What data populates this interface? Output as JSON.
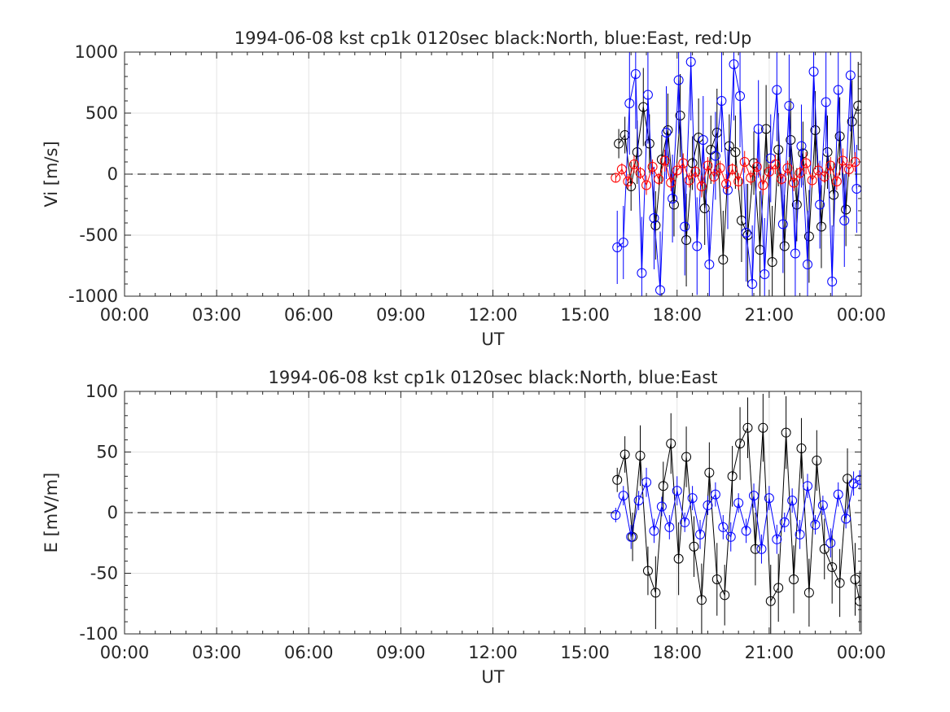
{
  "chart_data": [
    {
      "type": "line",
      "title": "1994-06-08 kst cp1k 0120sec black:North, blue:East, red:Up",
      "xlabel": "UT",
      "ylabel": "Vi [m/s]",
      "xlim_hours": [
        0,
        24
      ],
      "ylim": [
        -1000,
        1000
      ],
      "xticks": [
        "00:00",
        "03:00",
        "06:00",
        "09:00",
        "12:00",
        "15:00",
        "18:00",
        "21:00",
        "00:00"
      ],
      "yticks": [
        "1000",
        "500",
        "0",
        "-500",
        "-1000"
      ],
      "ytick_values": [
        1000,
        500,
        0,
        -500,
        -1000
      ],
      "grid": true,
      "zero_line": true,
      "colors": {
        "north": "#000000",
        "east": "#0000ff",
        "up": "#ff0000"
      },
      "series": [
        {
          "color": "#000000",
          "x": [
            16.1,
            16.3,
            16.5,
            16.7,
            16.9,
            17.1,
            17.3,
            17.5,
            17.7,
            17.9,
            18.1,
            18.3,
            18.5,
            18.7,
            18.9,
            19.1,
            19.3,
            19.5,
            19.7,
            19.9,
            20.1,
            20.3,
            20.5,
            20.7,
            20.9,
            21.1,
            21.3,
            21.5,
            21.7,
            21.9,
            22.1,
            22.3,
            22.5,
            22.7,
            22.9,
            23.1,
            23.3,
            23.5,
            23.7,
            23.9
          ],
          "y": [
            250,
            320,
            -100,
            180,
            550,
            250,
            -420,
            120,
            360,
            -250,
            480,
            -540,
            90,
            300,
            -280,
            200,
            340,
            -700,
            230,
            180,
            -380,
            -500,
            90,
            -620,
            370,
            -720,
            200,
            -590,
            280,
            -250,
            170,
            -510,
            360,
            -430,
            180,
            -170,
            310,
            -290,
            430,
            560
          ],
          "err": [
            120,
            150,
            200,
            260,
            320,
            240,
            280,
            200,
            300,
            260,
            340,
            380,
            220,
            320,
            300,
            280,
            360,
            400,
            260,
            300,
            340,
            420,
            260,
            480,
            360,
            460,
            300,
            420,
            340,
            300,
            260,
            380,
            320,
            340,
            300,
            260,
            320,
            300,
            340,
            360
          ]
        },
        {
          "color": "#0000ff",
          "x": [
            16.05,
            16.25,
            16.45,
            16.65,
            16.85,
            17.05,
            17.25,
            17.45,
            17.65,
            17.85,
            18.05,
            18.25,
            18.45,
            18.65,
            18.85,
            19.05,
            19.25,
            19.45,
            19.65,
            19.85,
            20.05,
            20.25,
            20.45,
            20.65,
            20.85,
            21.05,
            21.25,
            21.45,
            21.65,
            21.85,
            22.05,
            22.25,
            22.45,
            22.65,
            22.85,
            23.05,
            23.25,
            23.45,
            23.65,
            23.85
          ],
          "y": [
            -600,
            -560,
            580,
            820,
            -810,
            650,
            -360,
            -950,
            340,
            -200,
            770,
            -430,
            920,
            -590,
            280,
            -740,
            150,
            600,
            -130,
            900,
            640,
            -480,
            -900,
            370,
            -820,
            130,
            690,
            -410,
            560,
            -650,
            230,
            -740,
            840,
            -250,
            590,
            -880,
            690,
            -380,
            810,
            -120
          ],
          "err": [
            300,
            300,
            420,
            450,
            460,
            400,
            420,
            480,
            380,
            360,
            440,
            400,
            480,
            400,
            360,
            440,
            360,
            420,
            320,
            460,
            420,
            400,
            480,
            400,
            460,
            360,
            420,
            400,
            420,
            420,
            340,
            440,
            460,
            360,
            420,
            460,
            420,
            380,
            460,
            360
          ]
        },
        {
          "color": "#ff0000",
          "x": [
            16.0,
            16.2,
            16.4,
            16.6,
            16.8,
            17.0,
            17.2,
            17.4,
            17.6,
            17.8,
            18.0,
            18.2,
            18.4,
            18.6,
            18.8,
            19.0,
            19.2,
            19.4,
            19.6,
            19.8,
            20.0,
            20.2,
            20.4,
            20.6,
            20.8,
            21.0,
            21.2,
            21.4,
            21.6,
            21.8,
            22.0,
            22.2,
            22.4,
            22.6,
            22.8,
            23.0,
            23.2,
            23.4,
            23.6,
            23.8
          ],
          "y": [
            -30,
            40,
            -60,
            80,
            10,
            -90,
            60,
            -40,
            110,
            -70,
            30,
            90,
            -50,
            20,
            -100,
            70,
            -20,
            50,
            -80,
            40,
            -60,
            100,
            -30,
            60,
            -90,
            20,
            80,
            -40,
            50,
            -70,
            10,
            90,
            -50,
            30,
            -20,
            70,
            -60,
            110,
            40,
            100
          ],
          "err": [
            40,
            50,
            60,
            70,
            50,
            80,
            60,
            50,
            90,
            70,
            60,
            80,
            60,
            50,
            90,
            70,
            60,
            60,
            80,
            50,
            70,
            90,
            60,
            70,
            80,
            60,
            80,
            50,
            60,
            70,
            50,
            90,
            60,
            60,
            50,
            70,
            70,
            100,
            60,
            80
          ]
        }
      ]
    },
    {
      "type": "line",
      "title": "1994-06-08 kst cp1k 0120sec black:North, blue:East",
      "xlabel": "UT",
      "ylabel": "E [mV/m]",
      "xlim_hours": [
        0,
        24
      ],
      "ylim": [
        -100,
        100
      ],
      "xticks": [
        "00:00",
        "03:00",
        "06:00",
        "09:00",
        "12:00",
        "15:00",
        "18:00",
        "21:00",
        "00:00"
      ],
      "yticks": [
        "100",
        "50",
        "0",
        "-50",
        "-100"
      ],
      "ytick_values": [
        100,
        50,
        0,
        -50,
        -100
      ],
      "grid": true,
      "zero_line": true,
      "colors": {
        "north": "#000000",
        "east": "#0000ff"
      },
      "series": [
        {
          "color": "#000000",
          "x": [
            16.05,
            16.3,
            16.55,
            16.8,
            17.05,
            17.3,
            17.55,
            17.8,
            18.05,
            18.3,
            18.55,
            18.8,
            19.05,
            19.3,
            19.55,
            19.8,
            20.05,
            20.3,
            20.55,
            20.8,
            21.05,
            21.3,
            21.55,
            21.8,
            22.05,
            22.3,
            22.55,
            22.8,
            23.05,
            23.3,
            23.55,
            23.8,
            23.95
          ],
          "y": [
            27,
            48,
            -20,
            47,
            -48,
            -66,
            22,
            57,
            -38,
            46,
            -28,
            -72,
            33,
            -55,
            -68,
            30,
            57,
            70,
            -30,
            70,
            -73,
            -62,
            66,
            -55,
            53,
            -66,
            43,
            -30,
            -45,
            -58,
            28,
            -55,
            -73
          ],
          "err": [
            10,
            15,
            20,
            25,
            20,
            30,
            20,
            25,
            30,
            25,
            25,
            30,
            25,
            30,
            25,
            25,
            30,
            25,
            30,
            28,
            30,
            28,
            30,
            28,
            25,
            28,
            25,
            25,
            30,
            28,
            25,
            30,
            25
          ]
        },
        {
          "color": "#0000ff",
          "x": [
            16.0,
            16.25,
            16.5,
            16.75,
            17.0,
            17.25,
            17.5,
            17.75,
            18.0,
            18.25,
            18.5,
            18.75,
            19.0,
            19.25,
            19.5,
            19.75,
            20.0,
            20.25,
            20.5,
            20.75,
            21.0,
            21.25,
            21.5,
            21.75,
            22.0,
            22.25,
            22.5,
            22.75,
            23.0,
            23.25,
            23.5,
            23.75,
            23.95
          ],
          "y": [
            -2,
            14,
            -20,
            10,
            25,
            -15,
            5,
            -12,
            18,
            -8,
            12,
            -18,
            6,
            15,
            -12,
            -20,
            8,
            -15,
            14,
            -30,
            12,
            -22,
            -8,
            10,
            -18,
            22,
            -10,
            6,
            -25,
            15,
            -5,
            24,
            27
          ],
          "err": [
            6,
            8,
            10,
            8,
            12,
            10,
            8,
            10,
            12,
            8,
            10,
            12,
            8,
            10,
            10,
            12,
            8,
            10,
            10,
            12,
            10,
            12,
            8,
            10,
            12,
            10,
            8,
            8,
            12,
            10,
            8,
            10,
            8
          ]
        }
      ]
    }
  ]
}
